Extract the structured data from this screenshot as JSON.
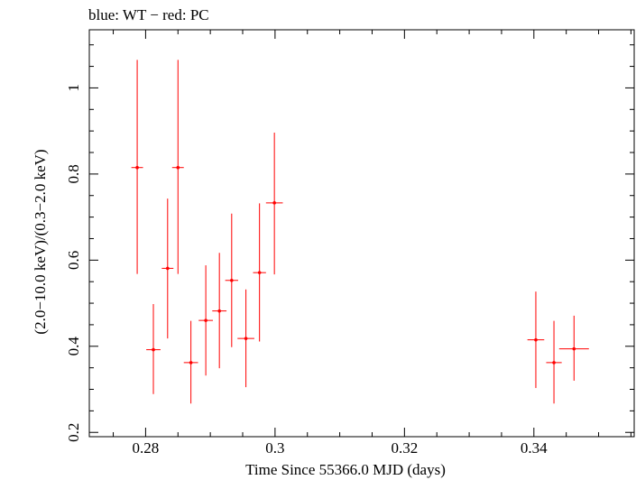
{
  "chart_data": {
    "type": "scatter",
    "title": "blue: WT − red: PC",
    "xlabel": "Time Since 55366.0 MJD (days)",
    "ylabel": "(2.0−10.0 keV)/(0.3−2.0 keV)",
    "xlim": [
      0.2713,
      0.3555
    ],
    "ylim": [
      0.19,
      1.135
    ],
    "x_ticks": [
      0.28,
      0.3,
      0.32,
      0.34
    ],
    "x_tick_labels": [
      "0.28",
      "0.3",
      "0.32",
      "0.34"
    ],
    "y_ticks": [
      0.2,
      0.4,
      0.6,
      0.8,
      1.0
    ],
    "y_tick_labels": [
      "0.2",
      "0.4",
      "0.6",
      "0.8",
      "1"
    ],
    "grid": false,
    "series": [
      {
        "color": "#ff0000",
        "points": [
          {
            "x": 0.2787,
            "y": 0.815,
            "xerr": 0.0009,
            "yerr_low": 0.247,
            "yerr_high": 0.25
          },
          {
            "x": 0.2812,
            "y": 0.392,
            "xerr": 0.0011,
            "yerr_low": 0.103,
            "yerr_high": 0.106
          },
          {
            "x": 0.2834,
            "y": 0.581,
            "xerr": 0.0009,
            "yerr_low": 0.163,
            "yerr_high": 0.162
          },
          {
            "x": 0.285,
            "y": 0.815,
            "xerr": 0.0009,
            "yerr_low": 0.247,
            "yerr_high": 0.25
          },
          {
            "x": 0.287,
            "y": 0.362,
            "xerr": 0.0011,
            "yerr_low": 0.095,
            "yerr_high": 0.097
          },
          {
            "x": 0.2893,
            "y": 0.46,
            "xerr": 0.0011,
            "yerr_low": 0.128,
            "yerr_high": 0.128
          },
          {
            "x": 0.2914,
            "y": 0.482,
            "xerr": 0.0011,
            "yerr_low": 0.133,
            "yerr_high": 0.135
          },
          {
            "x": 0.2933,
            "y": 0.553,
            "xerr": 0.001,
            "yerr_low": 0.155,
            "yerr_high": 0.155
          },
          {
            "x": 0.2955,
            "y": 0.418,
            "xerr": 0.0013,
            "yerr_low": 0.113,
            "yerr_high": 0.114
          },
          {
            "x": 0.2976,
            "y": 0.571,
            "xerr": 0.001,
            "yerr_low": 0.16,
            "yerr_high": 0.161
          },
          {
            "x": 0.2999,
            "y": 0.733,
            "xerr": 0.0013,
            "yerr_low": 0.166,
            "yerr_high": 0.163
          },
          {
            "x": 0.3403,
            "y": 0.415,
            "xerr": 0.0013,
            "yerr_low": 0.112,
            "yerr_high": 0.112
          },
          {
            "x": 0.3431,
            "y": 0.362,
            "xerr": 0.0012,
            "yerr_low": 0.095,
            "yerr_high": 0.097
          },
          {
            "x": 0.3462,
            "y": 0.394,
            "xerr": 0.0023,
            "yerr_low": 0.074,
            "yerr_high": 0.077
          }
        ]
      }
    ]
  }
}
